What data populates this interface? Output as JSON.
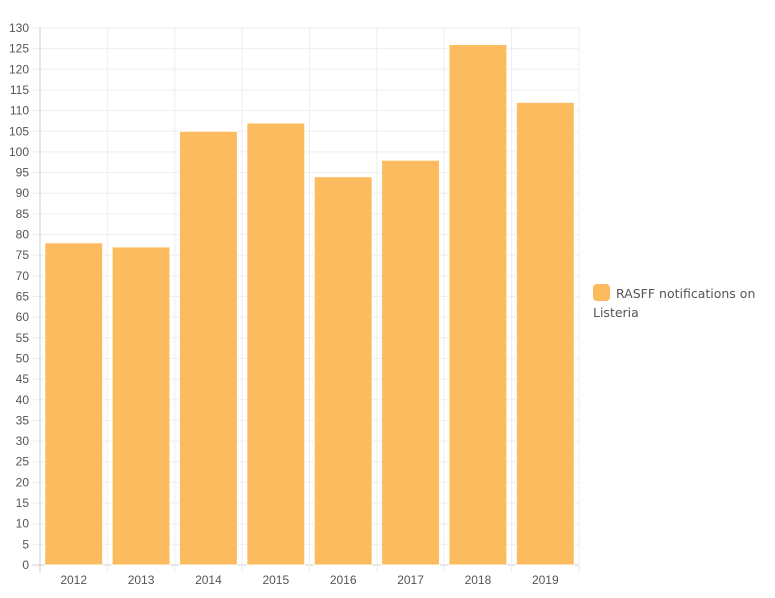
{
  "colors": {
    "bar_fill": "#fcbb5e",
    "bar_stroke": "#ffffff",
    "grid": "#eeeeee",
    "axis": "#cccccc",
    "text": "#555555"
  },
  "chart_data": {
    "type": "bar",
    "title": "",
    "xlabel": "",
    "ylabel": "",
    "categories": [
      "2012",
      "2013",
      "2014",
      "2015",
      "2016",
      "2017",
      "2018",
      "2019"
    ],
    "series": [
      {
        "name": "RASFF notifications on Listeria",
        "values": [
          78,
          77,
          105,
          107,
          94,
          98,
          126,
          112
        ]
      }
    ],
    "ylim": [
      0,
      130
    ],
    "ytick_step": 5,
    "grid": true,
    "legend_position": "right"
  }
}
